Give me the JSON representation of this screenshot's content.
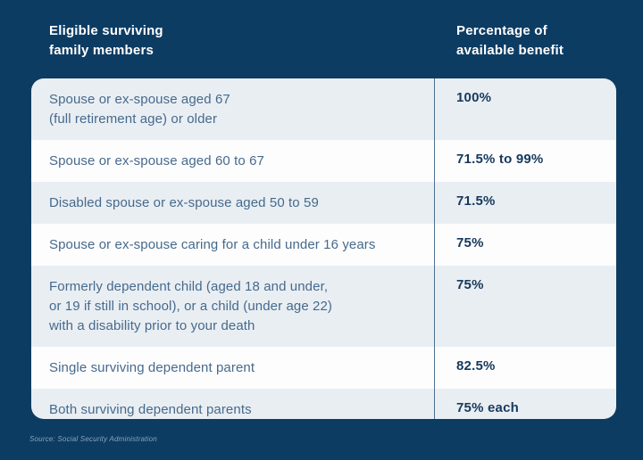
{
  "colors": {
    "background": "#0d3c63",
    "row_gray": "#e9eef3",
    "row_white": "#fdfdfe",
    "divider": "#4d7191",
    "member_text": "#466a8c",
    "benefit_text": "#16395c",
    "header_text": "#ffffff",
    "source_text": "#8ba3ba"
  },
  "header": {
    "members_label": "Eligible surviving\nfamily members",
    "benefit_label": "Percentage of\navailable benefit"
  },
  "table": {
    "rows": [
      {
        "member": "Spouse or ex-spouse aged 67\n(full retirement age) or older",
        "benefit": "100%"
      },
      {
        "member": "Spouse or ex-spouse aged 60 to 67",
        "benefit": "71.5% to 99%"
      },
      {
        "member": "Disabled spouse or ex-spouse aged 50 to 59",
        "benefit": "71.5%"
      },
      {
        "member": "Spouse or ex-spouse caring for a child under 16 years",
        "benefit": "75%"
      },
      {
        "member": "Formerly dependent child (aged 18 and under,\nor 19 if still in school), or a child (under age 22)\nwith a disability prior to your death",
        "benefit": "75%"
      },
      {
        "member": "Single surviving dependent parent",
        "benefit": "82.5%"
      },
      {
        "member": "Both surviving dependent parents",
        "benefit": "75% each"
      }
    ]
  },
  "source": "Source: Social Security Administration",
  "chart_data": {
    "type": "table",
    "title": "",
    "columns": [
      "Eligible surviving family members",
      "Percentage of available benefit"
    ],
    "rows": [
      [
        "Spouse or ex-spouse aged 67 (full retirement age) or older",
        "100%"
      ],
      [
        "Spouse or ex-spouse aged 60 to 67",
        "71.5% to 99%"
      ],
      [
        "Disabled spouse or ex-spouse aged 50 to 59",
        "71.5%"
      ],
      [
        "Spouse or ex-spouse caring for a child under 16 years",
        "75%"
      ],
      [
        "Formerly dependent child (aged 18 and under, or 19 if still in school), or a child (under age 22) with a disability prior to your death",
        "75%"
      ],
      [
        "Single surviving dependent parent",
        "82.5%"
      ],
      [
        "Both surviving dependent parents",
        "75% each"
      ]
    ],
    "source": "Source: Social Security Administration",
    "layout": {
      "zebra_striping": true,
      "column_divider": true
    }
  }
}
